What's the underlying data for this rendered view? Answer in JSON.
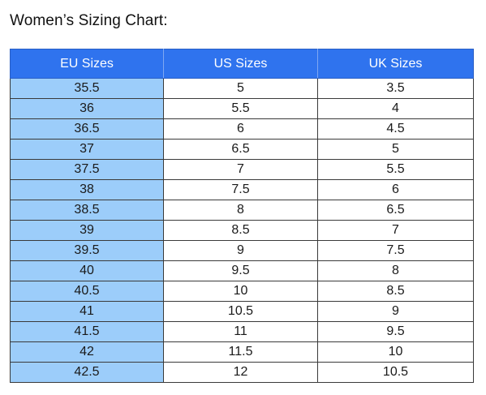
{
  "page": {
    "title": "Women’s Sizing Chart:"
  },
  "table": {
    "headers": [
      "EU Sizes",
      "US Sizes",
      "UK Sizes"
    ],
    "rows": [
      [
        "35.5",
        "5",
        "3.5"
      ],
      [
        "36",
        "5.5",
        "4"
      ],
      [
        "36.5",
        "6",
        "4.5"
      ],
      [
        "37",
        "6.5",
        "5"
      ],
      [
        "37.5",
        "7",
        "5.5"
      ],
      [
        "38",
        "7.5",
        "6"
      ],
      [
        "38.5",
        "8",
        "6.5"
      ],
      [
        "39",
        "8.5",
        "7"
      ],
      [
        "39.5",
        "9",
        "7.5"
      ],
      [
        "40",
        "9.5",
        "8"
      ],
      [
        "40.5",
        "10",
        "8.5"
      ],
      [
        "41",
        "10.5",
        "9"
      ],
      [
        "41.5",
        "11",
        "9.5"
      ],
      [
        "42",
        "11.5",
        "10"
      ],
      [
        "42.5",
        "12",
        "10.5"
      ]
    ]
  },
  "colors": {
    "header_background": "#2f73ee",
    "eu_column_background": "#9ccdfa",
    "header_text": "#ffffff"
  }
}
